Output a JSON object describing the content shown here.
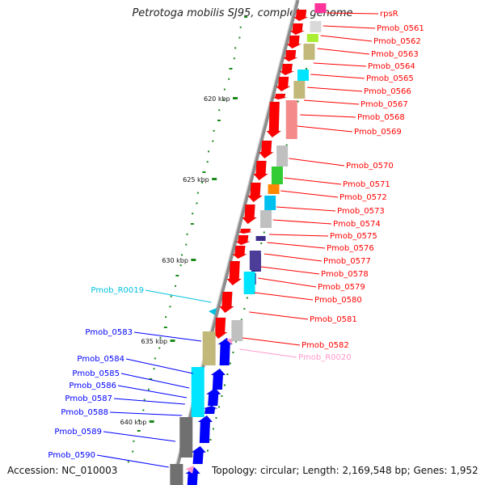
{
  "title": "Petrotoga mobilis SJ95, complete genome",
  "accession": "Accession: NC_010003",
  "topology": "Topology: circular; Length: 2,169,548 bp; Genes: 1,952",
  "colors": {
    "forward_gene": "#ff0000",
    "reverse_gene": "#0000ff",
    "rna": "#00c0e0",
    "pseudo": "#ff99cc",
    "tick": "#1a8a1a",
    "backbone": "#8c8c8c"
  },
  "ticks": [
    {
      "label": "620 kbp"
    },
    {
      "label": "625 kbp"
    },
    {
      "label": "630 kbp"
    },
    {
      "label": "635 kbp"
    },
    {
      "label": "640 kbp"
    }
  ],
  "right_labels": [
    {
      "text": "rpsR",
      "color": "#ff0000"
    },
    {
      "text": "Pmob_0561",
      "color": "#ff0000"
    },
    {
      "text": "Pmob_0562",
      "color": "#ff0000"
    },
    {
      "text": "Pmob_0563",
      "color": "#ff0000"
    },
    {
      "text": "Pmob_0564",
      "color": "#ff0000"
    },
    {
      "text": "Pmob_0565",
      "color": "#ff0000"
    },
    {
      "text": "Pmob_0566",
      "color": "#ff0000"
    },
    {
      "text": "Pmob_0567",
      "color": "#ff0000"
    },
    {
      "text": "Pmob_0568",
      "color": "#ff0000"
    },
    {
      "text": "Pmob_0569",
      "color": "#ff0000"
    },
    {
      "text": "Pmob_0570",
      "color": "#ff0000"
    },
    {
      "text": "Pmob_0571",
      "color": "#ff0000"
    },
    {
      "text": "Pmob_0572",
      "color": "#ff0000"
    },
    {
      "text": "Pmob_0573",
      "color": "#ff0000"
    },
    {
      "text": "Pmob_0574",
      "color": "#ff0000"
    },
    {
      "text": "Pmob_0575",
      "color": "#ff0000"
    },
    {
      "text": "Pmob_0576",
      "color": "#ff0000"
    },
    {
      "text": "Pmob_0577",
      "color": "#ff0000"
    },
    {
      "text": "Pmob_0578",
      "color": "#ff0000"
    },
    {
      "text": "Pmob_0579",
      "color": "#ff0000"
    },
    {
      "text": "Pmob_0580",
      "color": "#ff0000"
    },
    {
      "text": "Pmob_0581",
      "color": "#ff0000"
    },
    {
      "text": "Pmob_0582",
      "color": "#ff0000"
    },
    {
      "text": "Pmob_R0020",
      "color": "#ff99cc"
    }
  ],
  "left_labels": [
    {
      "text": "Pmob_R0019",
      "color": "#00c0e0"
    },
    {
      "text": "Pmob_0583",
      "color": "#0000ff"
    },
    {
      "text": "Pmob_0584",
      "color": "#0000ff"
    },
    {
      "text": "Pmob_0585",
      "color": "#0000ff"
    },
    {
      "text": "Pmob_0586",
      "color": "#0000ff"
    },
    {
      "text": "Pmob_0587",
      "color": "#0000ff"
    },
    {
      "text": "Pmob_0588",
      "color": "#0000ff"
    },
    {
      "text": "Pmob_0589",
      "color": "#0000ff"
    },
    {
      "text": "Pmob_0590",
      "color": "#0000ff"
    }
  ]
}
